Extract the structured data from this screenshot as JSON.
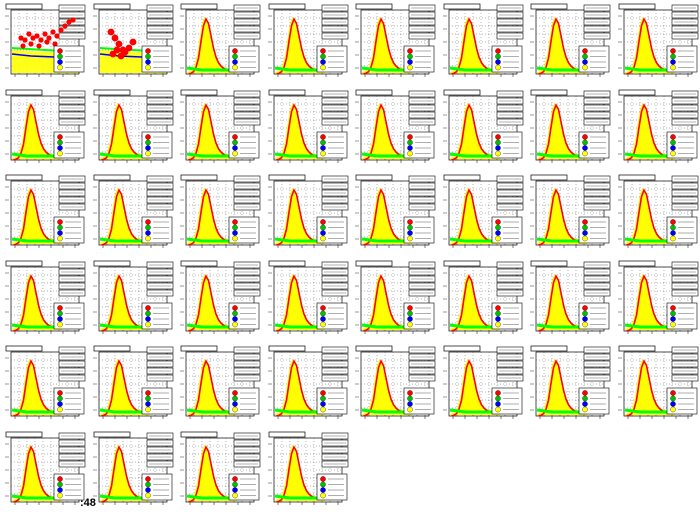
{
  "page": {
    "footer_label": ":48"
  },
  "colors": {
    "background": "#ffffff",
    "frame": "#000000",
    "hist_fill": "#ffff00",
    "curve_red": "#ff0000",
    "curve_green": "#00ff00",
    "curve_blue": "#0000ff",
    "marker_red": "#ff0000",
    "marker_green": "#00c000",
    "marker_blue": "#0000ff",
    "marker_yellow": "#ffff00",
    "grid_dots": "#000000"
  },
  "chart_data": {
    "type": "multi-panel-histogram",
    "panel_count": 44,
    "columns": 8,
    "rows": 6,
    "panel_types": [
      "scatter",
      "scatter",
      "peak",
      "peak",
      "peak",
      "peak",
      "peak",
      "peak",
      "peak",
      "peak",
      "peak",
      "peak",
      "peak",
      "peak",
      "peak",
      "peak",
      "peak",
      "peak",
      "peak",
      "peak",
      "peak",
      "peak",
      "peak",
      "peak",
      "peak",
      "peak",
      "peak",
      "peak",
      "peak",
      "peak",
      "peak",
      "peak",
      "peak",
      "peak",
      "peak",
      "peak",
      "peak",
      "peak",
      "peak",
      "peak",
      "peak",
      "peak",
      "peak",
      "peak"
    ],
    "peak_shape": {
      "x": [
        0,
        1,
        2,
        3,
        4,
        5,
        6,
        7,
        8,
        9,
        10,
        11,
        12,
        13,
        14,
        15,
        16,
        17,
        18,
        19,
        20
      ],
      "y": [
        2,
        3,
        6,
        14,
        30,
        60,
        88,
        100,
        92,
        70,
        48,
        32,
        22,
        16,
        12,
        10,
        9,
        8,
        8,
        7,
        7
      ]
    },
    "tail_curves": [
      "red",
      "green",
      "blue"
    ],
    "legend_markers": [
      "red",
      "green",
      "blue",
      "yellow"
    ],
    "grid": true
  }
}
